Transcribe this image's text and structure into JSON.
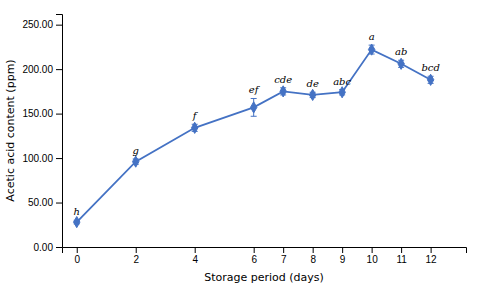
{
  "chart_data": {
    "type": "line",
    "xlabel": "Storage period (days)",
    "ylabel": "Acetic acid content (ppm)",
    "x": [
      0,
      2,
      4,
      6,
      7,
      8,
      9,
      10,
      11,
      12
    ],
    "series": [
      {
        "color": "#4472C4",
        "marker": "diamond",
        "values": [
          28,
          96,
          134,
          157,
          175,
          171,
          174,
          222,
          206,
          188
        ],
        "errors": [
          2,
          3,
          4,
          10,
          4,
          3,
          3,
          5,
          4,
          4
        ]
      }
    ],
    "annotations": [
      "h",
      "g",
      "f",
      "ef",
      "cde",
      "de",
      "abc",
      "a",
      "ab",
      "bcd"
    ],
    "xlim": [
      -0.5,
      13.2
    ],
    "ylim": [
      0,
      262
    ],
    "xticks": [
      0,
      2,
      4,
      6,
      7,
      8,
      9,
      10,
      11,
      12
    ],
    "yticks": [
      {
        "value": 0.0,
        "label": "0.00"
      },
      {
        "value": 50.0,
        "label": "50.00"
      },
      {
        "value": 100.0,
        "label": "100.00"
      },
      {
        "value": 150.0,
        "label": "150.00"
      },
      {
        "value": 200.0,
        "label": "200.00"
      },
      {
        "value": 250.0,
        "label": "250.00"
      }
    ],
    "grid": false
  }
}
